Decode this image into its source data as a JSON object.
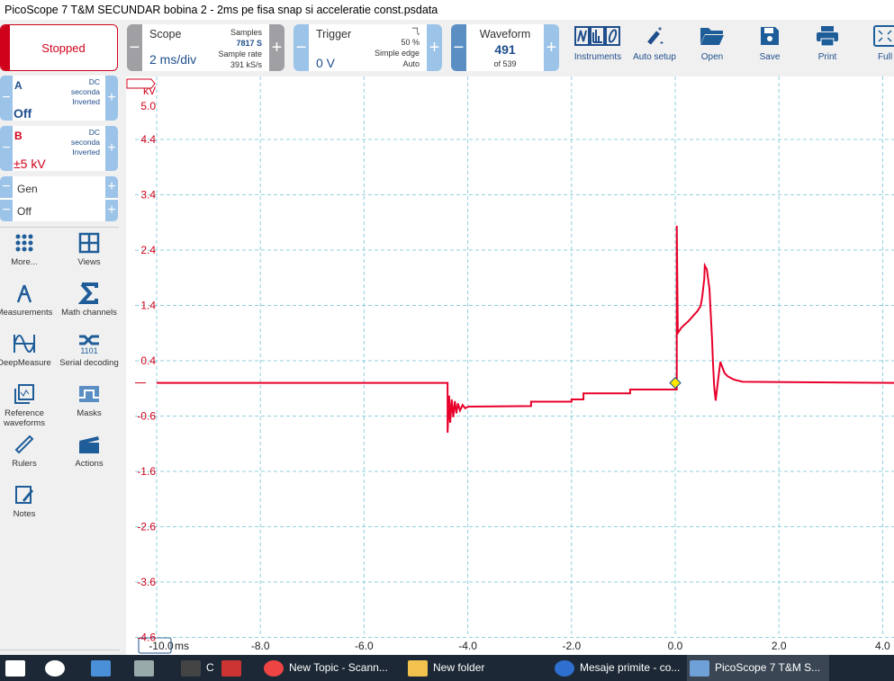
{
  "window": {
    "title": "PicoScope 7 T&M SECUNDAR bobina 2 - 2ms pe fisa snap si acceleratie const.psdata"
  },
  "run_state": "Stopped",
  "scope": {
    "label": "Scope",
    "timebase": "2 ms/div",
    "samples_label": "Samples",
    "samples": "7817 S",
    "rate_label": "Sample rate",
    "rate": "391 kS/s"
  },
  "trigger": {
    "label": "Trigger",
    "level": "0 V",
    "position": "50 %",
    "type": "Simple edge",
    "mode": "Auto",
    "edge_icon": "falling-edge-icon"
  },
  "waveform": {
    "label": "Waveform",
    "current": "491",
    "total": "of 539"
  },
  "toolbar": [
    {
      "label": "Instruments",
      "icon": "instruments-icon"
    },
    {
      "label": "Auto setup",
      "icon": "wand-icon"
    },
    {
      "label": "Open",
      "icon": "folder-icon"
    },
    {
      "label": "Save",
      "icon": "save-icon"
    },
    {
      "label": "Print",
      "icon": "printer-icon"
    },
    {
      "label": "Full",
      "icon": "fullscreen-icon"
    }
  ],
  "channels": [
    {
      "name": "A",
      "coupling": "DC",
      "probe": "seconda",
      "invert": "Inverted",
      "range": "Off",
      "color": "#1f4e8c"
    },
    {
      "name": "B",
      "coupling": "DC",
      "probe": "seconda",
      "invert": "Inverted",
      "range": "±5 kV",
      "color": "#d0021b"
    }
  ],
  "generator": {
    "label": "Gen",
    "state": "Off"
  },
  "side_tools": [
    {
      "label": "More...",
      "icon": "grid-dots-icon"
    },
    {
      "label": "Views",
      "icon": "views-icon"
    },
    {
      "label": "Measurements",
      "icon": "compass-icon"
    },
    {
      "label": "Math channels",
      "icon": "sigma-icon"
    },
    {
      "label": "DeepMeasure",
      "icon": "deepmeasure-icon"
    },
    {
      "label": "Serial decoding",
      "icon": "serial-icon"
    },
    {
      "label": "Reference waveforms",
      "icon": "reference-icon"
    },
    {
      "label": "Masks",
      "icon": "mask-icon"
    },
    {
      "label": "Rulers",
      "icon": "ruler-icon"
    },
    {
      "label": "Actions",
      "icon": "clapper-icon"
    },
    {
      "label": "Notes",
      "icon": "notes-icon"
    }
  ],
  "chart_data": {
    "type": "line",
    "ylabel": "kV",
    "xunit": "ms",
    "y_ticks": [
      "5.0",
      "4.4",
      "3.4",
      "2.4",
      "1.4",
      "0.4",
      "-0.6",
      "-1.6",
      "-2.6",
      "-3.6",
      "-4.6"
    ],
    "x_ticks": [
      "-10.0",
      "-8.0",
      "-6.0",
      "-4.0",
      "-2.0",
      "0.0",
      "2.0",
      "4.0"
    ],
    "xlim": [
      -10.0,
      4.3
    ],
    "ylim": [
      -4.6,
      5.0
    ],
    "grid": true,
    "series": [
      {
        "channel": "B",
        "color": "#e8002a",
        "points": [
          [
            -10.0,
            0.0
          ],
          [
            -4.39,
            0.0
          ],
          [
            -4.39,
            -0.9
          ],
          [
            -4.36,
            -0.23
          ],
          [
            -4.34,
            -0.72
          ],
          [
            -4.31,
            -0.3
          ],
          [
            -4.28,
            -0.62
          ],
          [
            -4.25,
            -0.33
          ],
          [
            -4.22,
            -0.55
          ],
          [
            -4.19,
            -0.37
          ],
          [
            -4.15,
            -0.5
          ],
          [
            -4.1,
            -0.4
          ],
          [
            -4.05,
            -0.46
          ],
          [
            -3.99,
            -0.43
          ],
          [
            -2.78,
            -0.42
          ],
          [
            -2.78,
            -0.34
          ],
          [
            -2.0,
            -0.34
          ],
          [
            -2.0,
            -0.3
          ],
          [
            -1.77,
            -0.3
          ],
          [
            -1.77,
            -0.19
          ],
          [
            -0.87,
            -0.19
          ],
          [
            -0.87,
            -0.12
          ],
          [
            0.03,
            -0.12
          ],
          [
            0.03,
            2.84
          ],
          [
            0.05,
            0.9
          ],
          [
            0.12,
            1.0
          ],
          [
            0.26,
            1.12
          ],
          [
            0.43,
            1.3
          ],
          [
            0.49,
            1.39
          ],
          [
            0.52,
            1.55
          ],
          [
            0.56,
            1.88
          ],
          [
            0.57,
            2.12
          ],
          [
            0.61,
            2.05
          ],
          [
            0.66,
            1.7
          ],
          [
            0.69,
            1.15
          ],
          [
            0.71,
            0.79
          ],
          [
            0.73,
            0.33
          ],
          [
            0.75,
            -0.05
          ],
          [
            0.78,
            -0.32
          ],
          [
            0.83,
            0.08
          ],
          [
            0.87,
            0.38
          ],
          [
            0.95,
            0.18
          ],
          [
            1.01,
            0.12
          ],
          [
            1.13,
            0.06
          ],
          [
            1.3,
            0.02
          ],
          [
            4.3,
            0.0
          ]
        ]
      }
    ],
    "trigger_marker": {
      "t": 0.0,
      "v": 0.0,
      "color": "#ffe600"
    }
  },
  "taskbar": [
    {
      "label": "",
      "icon": "windows-start-icon"
    },
    {
      "label": "",
      "icon": "search-icon"
    },
    {
      "label": "",
      "icon": "network-pc-icon"
    },
    {
      "label": "",
      "icon": "calculator-icon"
    },
    {
      "label": "C",
      "icon": "app-c-icon"
    },
    {
      "label": "",
      "icon": "car-parts-icon"
    },
    {
      "label": "New Topic - Scann...",
      "icon": "chrome-icon"
    },
    {
      "label": "New folder",
      "icon": "folder-icon"
    },
    {
      "label": "Mesaje primite - co...",
      "icon": "thunderbird-icon"
    },
    {
      "label": "PicoScope 7 T&M S...",
      "icon": "picoscope-icon"
    }
  ]
}
